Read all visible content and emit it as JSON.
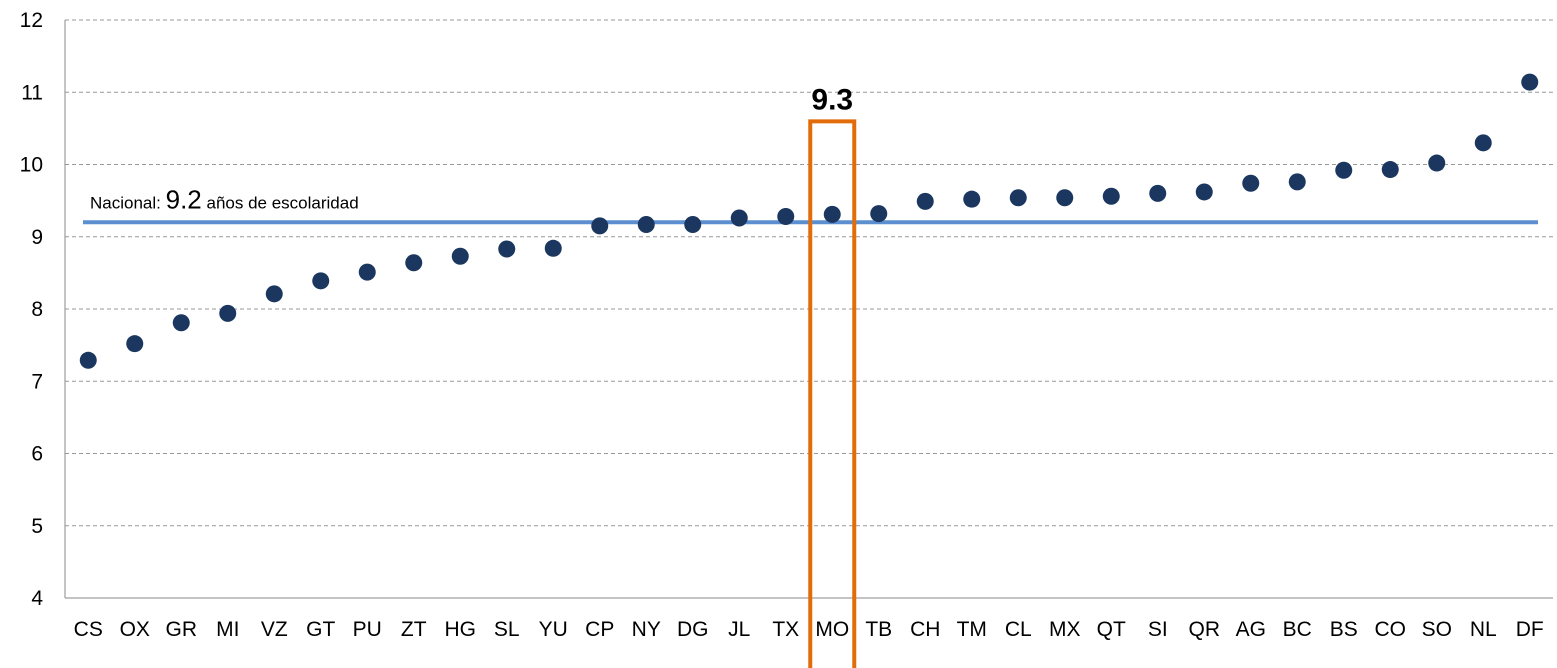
{
  "chart_data": {
    "type": "scatter",
    "categories": [
      "CS",
      "OX",
      "GR",
      "MI",
      "VZ",
      "GT",
      "PU",
      "ZT",
      "HG",
      "SL",
      "YU",
      "CP",
      "NY",
      "DG",
      "JL",
      "TX",
      "MO",
      "TB",
      "CH",
      "TM",
      "CL",
      "MX",
      "QT",
      "SI",
      "QR",
      "AG",
      "BC",
      "BS",
      "CO",
      "SO",
      "NL",
      "DF"
    ],
    "values": [
      7.29,
      7.52,
      7.81,
      7.94,
      8.21,
      8.39,
      8.51,
      8.64,
      8.73,
      8.83,
      8.84,
      9.15,
      9.17,
      9.17,
      9.26,
      9.28,
      9.31,
      9.32,
      9.49,
      9.52,
      9.54,
      9.54,
      9.56,
      9.6,
      9.62,
      9.74,
      9.76,
      9.92,
      9.93,
      10.02,
      10.3,
      11.14
    ],
    "ylim": [
      4,
      12
    ],
    "yticks": [
      "4",
      "5",
      "6",
      "7",
      "8",
      "9",
      "10",
      "11",
      "12"
    ],
    "grid": true,
    "colors": {
      "points": "#1b3760",
      "national_line": "#5b8fd0",
      "highlight": "#e36c0a",
      "grid": "#999999"
    },
    "national": {
      "value": 9.2,
      "label_prefix": "Nacional: ",
      "label_value": "9.2",
      "label_suffix": " años de escolaridad"
    },
    "highlight": {
      "category": "MO",
      "label": "9.3"
    }
  }
}
